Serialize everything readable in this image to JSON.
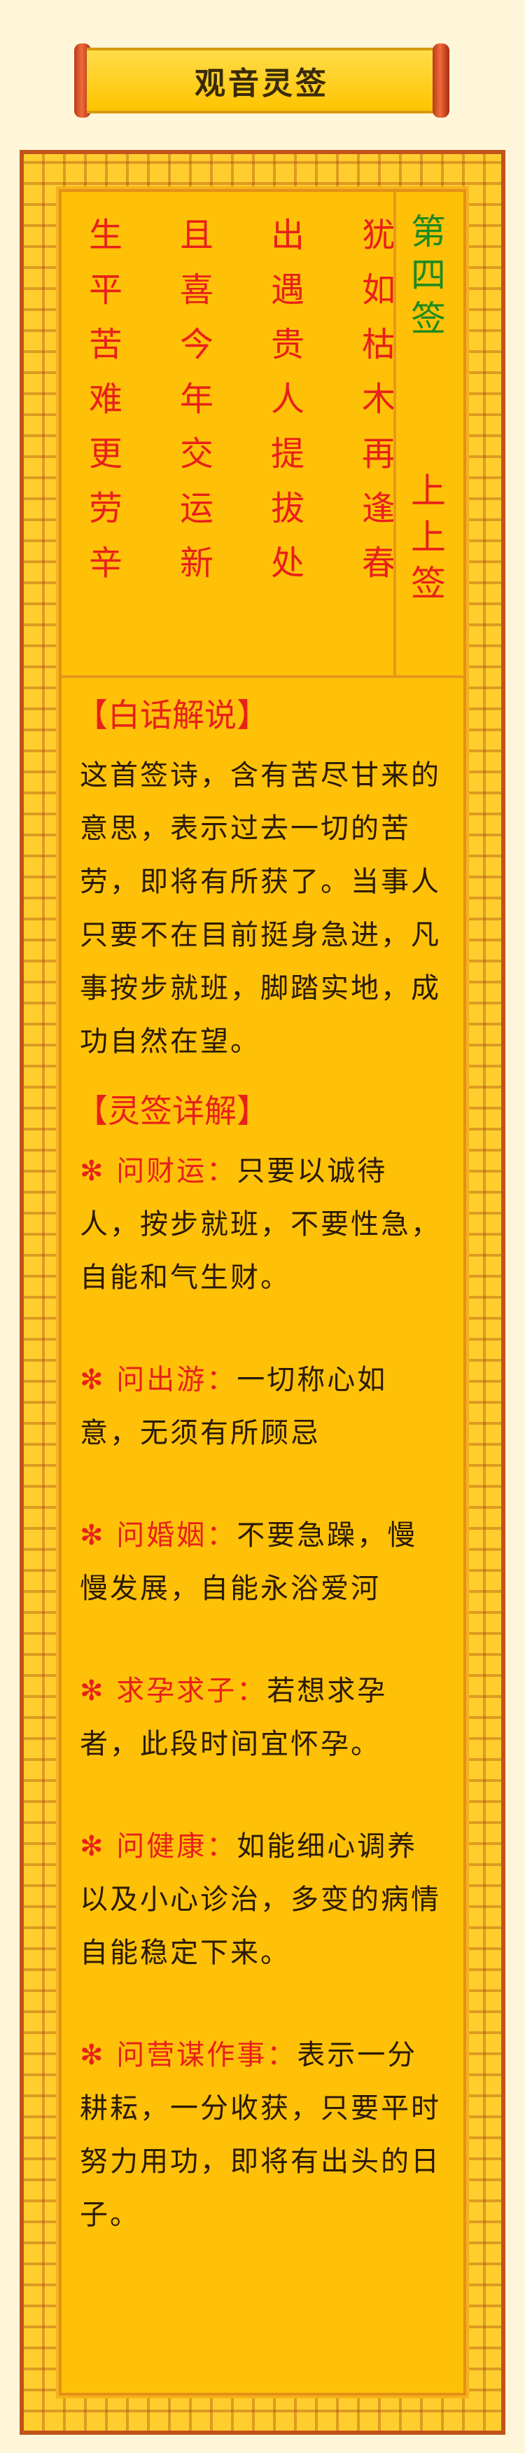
{
  "header": {
    "title": "观音灵签"
  },
  "poem": {
    "columns": [
      "犹如枯木再逢春",
      "出遇贵人提拔处",
      "且喜今年交运新",
      "生平苦难更劳辛"
    ]
  },
  "lot": {
    "number": "第四签",
    "grade": "上上签"
  },
  "explanation": {
    "heading": "【白话解说】",
    "text": "这首签诗，含有苦尽甘来的意思，表示过去一切的苦劳，即将有所获了。当事人只要不在目前挺身急进，凡事按步就班，脚踏实地，成功自然在望。"
  },
  "details": {
    "heading": "【灵签详解】",
    "star": "✻",
    "items": [
      {
        "label": "问财运：",
        "text": "只要以诚待人，按步就班，不要性急，自能和气生财。"
      },
      {
        "label": "问出游：",
        "text": "一切称心如意，无须有所顾忌"
      },
      {
        "label": "问婚姻：",
        "text": "不要急躁，慢慢发展，自能永浴爱河"
      },
      {
        "label": "求孕求子：",
        "text": "若想求孕者，此段时间宜怀孕。"
      },
      {
        "label": "问健康：",
        "text": "如能细心调养以及小心诊治，多变的病情自能稳定下来。"
      },
      {
        "label": "问营谋作事：",
        "text": "表示一分耕耘，一分收获，只要平时努力用功，即将有出头的日子。"
      }
    ]
  },
  "colors": {
    "accent_red": "#e8201a",
    "accent_green": "#1e8a1e",
    "panel": "#ffc107"
  }
}
